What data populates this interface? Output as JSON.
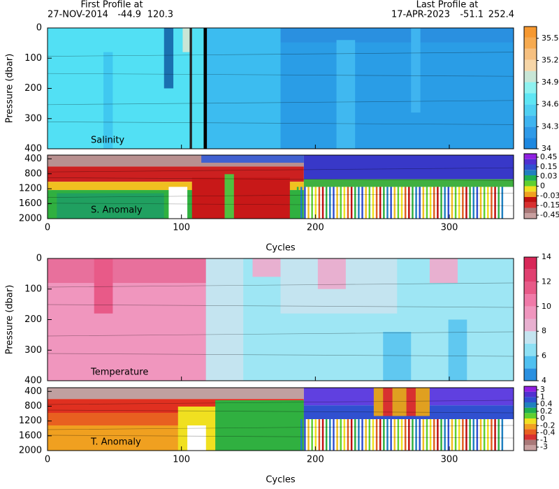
{
  "header": {
    "first_label": "First Profile at",
    "first_date": "27-NOV-2014",
    "first_lat": -44.9,
    "first_lon": 120.3,
    "last_label": "Last Profile at",
    "last_date": "17-APR-2023",
    "last_lat": -51.1,
    "last_lon": 252.4
  },
  "chart_data": [
    {
      "type": "section",
      "label": "Salinity",
      "ylabel": "Pressure (dbar)",
      "xlim": [
        0,
        348
      ],
      "xticks": [
        0,
        100,
        200,
        300
      ],
      "ylim": [
        400,
        0
      ],
      "yticks": [
        0,
        100,
        200,
        300,
        400
      ],
      "colorbar": {
        "ticks": [
          34,
          34.3,
          34.6,
          34.9,
          35.2,
          35.5
        ],
        "clim": [
          34,
          35.66
        ],
        "colors": [
          "#1e88e0",
          "#2f9ae8",
          "#3fb4f0",
          "#50d0f2",
          "#5ee6f4",
          "#8ef2f0",
          "#c8e6d6",
          "#f6d6a8",
          "#f6c080",
          "#f6aa50",
          "#f69830"
        ]
      }
    },
    {
      "type": "section",
      "label": "S. Anomaly",
      "xlabel": "Cycles",
      "xlim": [
        0,
        348
      ],
      "xticks": [
        0,
        100,
        200,
        300
      ],
      "ylim": [
        2000,
        300
      ],
      "yticks": [
        400,
        800,
        1200,
        1600,
        2000
      ],
      "colorbar": {
        "levels": [
          0.45,
          0.15,
          0.03,
          0,
          -0.03,
          -0.15,
          -0.45
        ],
        "colors": [
          "#c8a0a0",
          "#a87878",
          "#d83030",
          "#c01010",
          "#f0a020",
          "#f0e020",
          "#60d030",
          "#20b050",
          "#2080c0",
          "#3050d0",
          "#5030d0",
          "#9020e0"
        ]
      }
    },
    {
      "type": "section",
      "label": "Temperature",
      "ylabel": "Pressure (dbar)",
      "xlim": [
        0,
        348
      ],
      "xticks": [
        0,
        100,
        200,
        300
      ],
      "ylim": [
        400,
        0
      ],
      "yticks": [
        0,
        100,
        200,
        300,
        400
      ],
      "colorbar": {
        "ticks": [
          4,
          6,
          8,
          10,
          12,
          14
        ],
        "clim": [
          4,
          14
        ],
        "colors": [
          "#2a90e0",
          "#50c0f0",
          "#8ee0f4",
          "#c4e4f0",
          "#e8b0d0",
          "#f096be",
          "#f07aa8",
          "#e85a88",
          "#e04070",
          "#d82858"
        ]
      }
    },
    {
      "type": "section",
      "label": "T. Anomaly",
      "xlabel": "Cycles",
      "xlim": [
        0,
        348
      ],
      "xticks": [
        0,
        100,
        200,
        300
      ],
      "ylim": [
        2000,
        300
      ],
      "yticks": [
        400,
        800,
        1200,
        1600,
        2000
      ],
      "colorbar": {
        "levels": [
          3,
          1,
          0.4,
          0.2,
          0,
          -0.2,
          -0.4,
          -1,
          -3
        ],
        "colors": [
          "#c8a0a0",
          "#a87878",
          "#d83030",
          "#e86020",
          "#f0a020",
          "#f0e020",
          "#60d030",
          "#20b050",
          "#2080c0",
          "#3050d0",
          "#5030d0",
          "#9020e0"
        ]
      }
    }
  ]
}
